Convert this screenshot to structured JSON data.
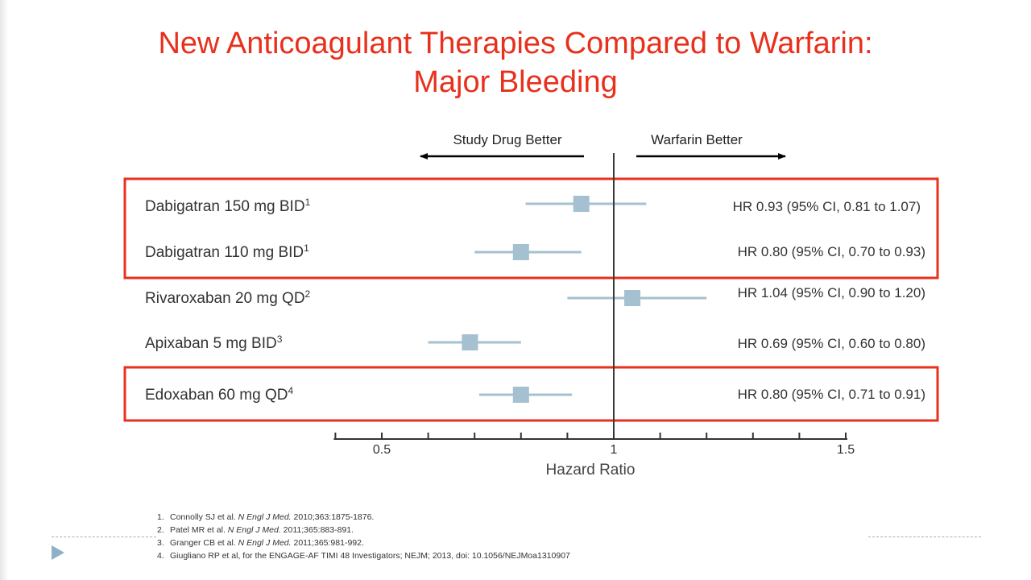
{
  "slide": {
    "title_line1": "New Anticoagulant Therapies Compared to Warfarin:",
    "title_line2": "Major Bleeding",
    "accent_color": "#e8301c",
    "marker_color": "#a5c0d0"
  },
  "chart_data": {
    "type": "forest",
    "xlabel": "Hazard Ratio",
    "xlim": [
      0.4,
      1.5
    ],
    "reference_line": 1,
    "direction_left": "Study Drug Better",
    "direction_right": "Warfarin Better",
    "major_ticks": [
      {
        "value": 0.5,
        "label": "0.5"
      },
      {
        "value": 1,
        "label": "1"
      },
      {
        "value": 1.5,
        "label": "1.5"
      }
    ],
    "minor_ticks": [
      0.4,
      0.6,
      0.7,
      0.8,
      0.9,
      1.1,
      1.2,
      1.3,
      1.4
    ],
    "rows": [
      {
        "drug": "Dabigatran 150 mg BID",
        "ref": "1",
        "hr": 0.93,
        "lo": 0.81,
        "hi": 1.07,
        "label": "HR 0.93 (95% CI, 0.81 to 1.07)",
        "boxed_group": 0
      },
      {
        "drug": "Dabigatran 110 mg BID",
        "ref": "1",
        "hr": 0.8,
        "lo": 0.7,
        "hi": 0.93,
        "label": "HR 0.80 (95% CI, 0.70 to 0.93)",
        "boxed_group": 0
      },
      {
        "drug": "Rivaroxaban 20 mg QD",
        "ref": "2",
        "hr": 1.04,
        "lo": 0.9,
        "hi": 1.2,
        "label": "HR 1.04 (95% CI, 0.90 to 1.20)",
        "boxed_group": null
      },
      {
        "drug": "Apixaban 5 mg BID",
        "ref": "3",
        "hr": 0.69,
        "lo": 0.6,
        "hi": 0.8,
        "label": "HR 0.69 (95% CI, 0.60 to 0.80)",
        "boxed_group": null
      },
      {
        "drug": "Edoxaban 60 mg QD",
        "ref": "4",
        "hr": 0.8,
        "lo": 0.71,
        "hi": 0.91,
        "label": "HR 0.80 (95% CI, 0.71 to 0.91)",
        "boxed_group": 1
      }
    ]
  },
  "footnotes": [
    {
      "num": "1.",
      "pre": "Connolly SJ et al. ",
      "journal": "N Engl J Med.",
      "post": " 2010;363:1875-1876."
    },
    {
      "num": "2.",
      "pre": "Patel MR et al. ",
      "journal": "N Engl J Med.",
      "post": " 2011;365:883-891."
    },
    {
      "num": "3.",
      "pre": "Granger CB et al. ",
      "journal": "N Engl J Med.",
      "post": " 2011;365:981-992."
    },
    {
      "num": "4.",
      "pre": "Giugliano RP et al, for the ENGAGE-AF TIMI 48 Investigators; NEJM; 2013, doi: 10.1056/NEJMoa1310907",
      "journal": "",
      "post": ""
    }
  ]
}
